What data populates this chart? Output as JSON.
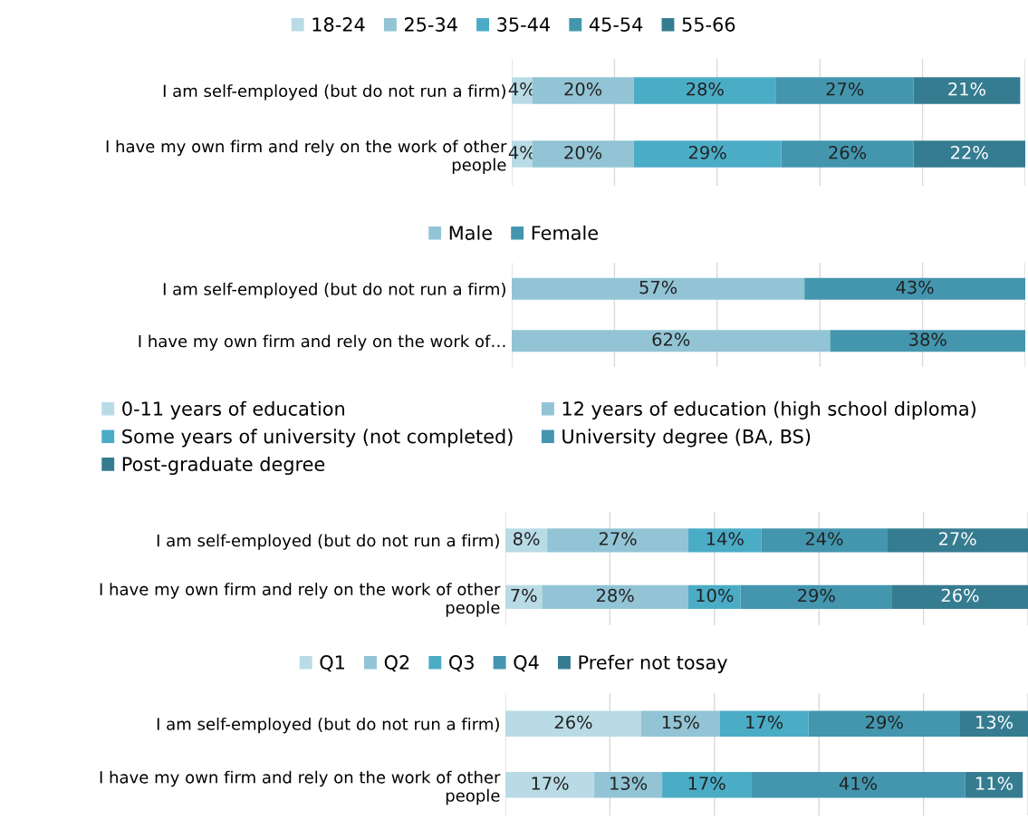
{
  "chart_data": [
    {
      "type": "bar",
      "orientation": "horizontal",
      "stacked": true,
      "grid": "x",
      "legend": "top",
      "tick_labels": "y",
      "categories": [
        "I am self-employed (but do not run a firm)",
        "I have my own firm and rely on the work of other people"
      ],
      "series": [
        {
          "name": "18-24",
          "color": "#b9dbe6",
          "values": [
            4,
            4
          ],
          "value_labels": [
            "4%",
            "4%"
          ]
        },
        {
          "name": "25-34",
          "color": "#92c4d5",
          "values": [
            20,
            20
          ],
          "value_labels": [
            "20%",
            "20%"
          ]
        },
        {
          "name": "35-44",
          "color": "#4bacc6",
          "values": [
            28,
            29
          ],
          "value_labels": [
            "28%",
            "29%"
          ]
        },
        {
          "name": "45-54",
          "color": "#4396ae",
          "values": [
            27,
            26
          ],
          "value_labels": [
            "27%",
            "26%"
          ]
        },
        {
          "name": "55-66",
          "color": "#357c91",
          "values": [
            21,
            22
          ],
          "value_labels": [
            "21%",
            "22%"
          ]
        }
      ]
    },
    {
      "type": "bar",
      "orientation": "horizontal",
      "stacked": true,
      "grid": "x",
      "legend": "top",
      "tick_labels": "y",
      "categories": [
        "I am self-employed (but do not run a firm)",
        "I have my own firm and rely on the work of…"
      ],
      "series": [
        {
          "name": "Male",
          "color": "#92c4d5",
          "values": [
            57,
            62
          ],
          "value_labels": [
            "57%",
            "62%"
          ]
        },
        {
          "name": "Female",
          "color": "#4396ae",
          "values": [
            43,
            38
          ],
          "value_labels": [
            "43%",
            "38%"
          ]
        }
      ]
    },
    {
      "type": "bar",
      "orientation": "horizontal",
      "stacked": true,
      "grid": "x",
      "legend": "top",
      "tick_labels": "y",
      "categories": [
        "I am self-employed (but do not run a firm)",
        "I have my own firm and rely on the work of other people"
      ],
      "series": [
        {
          "name": "0-11 years of education",
          "color": "#b9dbe6",
          "values": [
            8,
            7
          ],
          "value_labels": [
            "8%",
            "7%"
          ]
        },
        {
          "name": "12 years of education (high school diploma)",
          "color": "#92c4d5",
          "values": [
            27,
            28
          ],
          "value_labels": [
            "27%",
            "28%"
          ]
        },
        {
          "name": "Some years of university (not completed)",
          "color": "#4bacc6",
          "values": [
            14,
            10
          ],
          "value_labels": [
            "14%",
            "10%"
          ]
        },
        {
          "name": "University degree (BA, BS)",
          "color": "#4396ae",
          "values": [
            24,
            29
          ],
          "value_labels": [
            "24%",
            "29%"
          ]
        },
        {
          "name": "Post-graduate degree",
          "color": "#357c91",
          "values": [
            27,
            26
          ],
          "value_labels": [
            "27%",
            "26%"
          ]
        }
      ]
    },
    {
      "type": "bar",
      "orientation": "horizontal",
      "stacked": true,
      "grid": "x",
      "legend": "top",
      "tick_labels": "y",
      "categories": [
        "I am self-employed (but do not run a firm)",
        "I have my own firm and rely on the work of other people"
      ],
      "series": [
        {
          "name": "Q1",
          "color": "#b9dbe6",
          "values": [
            26,
            17
          ],
          "value_labels": [
            "26%",
            "17%"
          ]
        },
        {
          "name": "Q2",
          "color": "#92c4d5",
          "values": [
            15,
            13
          ],
          "value_labels": [
            "15%",
            "13%"
          ]
        },
        {
          "name": "Q3",
          "color": "#4bacc6",
          "values": [
            17,
            17
          ],
          "value_labels": [
            "17%",
            "17%"
          ]
        },
        {
          "name": "Q4",
          "color": "#4396ae",
          "values": [
            29,
            41
          ],
          "value_labels": [
            "29%",
            "41%"
          ]
        },
        {
          "name": "Prefer not tosay",
          "color": "#357c91",
          "values": [
            13,
            11
          ],
          "value_labels": [
            "13%",
            "11%"
          ]
        }
      ]
    }
  ]
}
